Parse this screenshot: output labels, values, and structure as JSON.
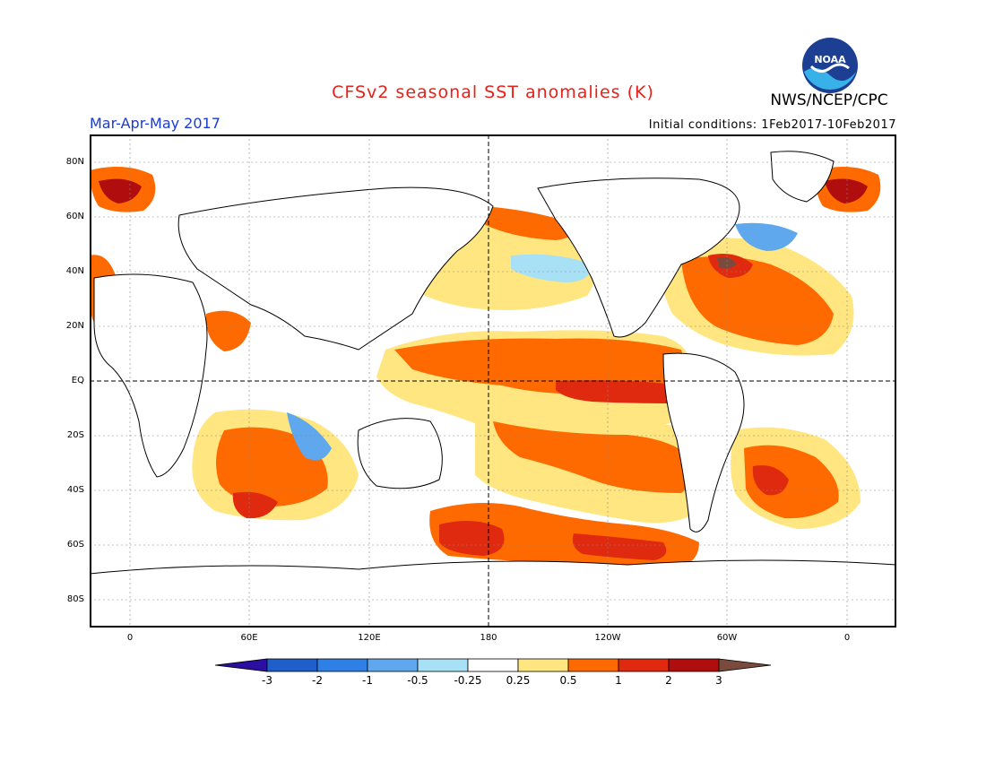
{
  "title": "CFSv2 seasonal SST anomalies (K)",
  "organization": "NWS/NCEP/CPC",
  "logo_text": "NOAA",
  "season": "Mar-Apr-May 2017",
  "initial_conditions": "Initial conditions: 1Feb2017-10Feb2017",
  "latitude_labels": [
    "80N",
    "60N",
    "40N",
    "20N",
    "EQ",
    "20S",
    "40S",
    "60S",
    "80S"
  ],
  "longitude_labels": [
    "0",
    "60E",
    "120E",
    "180",
    "120W",
    "60W",
    "0"
  ],
  "colorbar": {
    "ticks": [
      "-3",
      "-2",
      "-1",
      "-0.5",
      "-0.25",
      "0.25",
      "0.5",
      "1",
      "2",
      "3"
    ],
    "colors": [
      "#2a0fa0",
      "#1f5fcc",
      "#2f80e6",
      "#60a8ee",
      "#a8e0f5",
      "#ffffff",
      "#ffe680",
      "#ff6a00",
      "#e02a10",
      "#b00e0e",
      "#7a4a3c"
    ]
  },
  "colors": {
    "title": "#e8201a",
    "season": "#1a3bd6",
    "land_outline": "#000000"
  }
}
